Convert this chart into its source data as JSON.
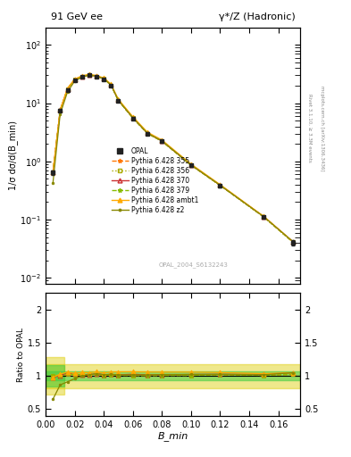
{
  "title_left": "91 GeV ee",
  "title_right": "γ*/Z (Hadronic)",
  "ylabel_main": "1/σ dσ/d(B_min)",
  "ylabel_ratio": "Ratio to OPAL",
  "xlabel": "B_min",
  "watermark": "OPAL_2004_S6132243",
  "right_label_top": "Rivet 3.1.10, ≥ 3.3M events",
  "right_label_bot": "mcplots.cern.ch [arXiv:1306.3436]",
  "x_data": [
    0.005,
    0.01,
    0.015,
    0.02,
    0.025,
    0.03,
    0.035,
    0.04,
    0.045,
    0.05,
    0.06,
    0.07,
    0.08,
    0.1,
    0.12,
    0.15,
    0.17
  ],
  "opal_y": [
    0.65,
    7.5,
    17.0,
    25.0,
    28.0,
    30.0,
    28.0,
    26.0,
    20.0,
    11.0,
    5.5,
    3.0,
    2.2,
    0.85,
    0.38,
    0.11,
    0.04
  ],
  "opal_yerr": [
    0.06,
    0.4,
    0.7,
    0.9,
    0.9,
    0.9,
    0.9,
    0.9,
    0.7,
    0.45,
    0.25,
    0.13,
    0.09,
    0.04,
    0.022,
    0.007,
    0.004
  ],
  "py355_y": [
    0.64,
    7.5,
    17.5,
    25.5,
    28.5,
    30.5,
    28.8,
    26.3,
    20.3,
    11.1,
    5.55,
    3.02,
    2.22,
    0.86,
    0.387,
    0.111,
    0.041
  ],
  "py356_y": [
    0.64,
    7.5,
    17.5,
    25.5,
    28.5,
    30.5,
    28.8,
    26.3,
    20.3,
    11.1,
    5.55,
    3.02,
    2.22,
    0.86,
    0.387,
    0.111,
    0.041
  ],
  "py370_y": [
    0.64,
    7.6,
    17.6,
    25.6,
    28.6,
    30.6,
    29.0,
    26.5,
    20.5,
    11.2,
    5.65,
    3.05,
    2.24,
    0.87,
    0.39,
    0.113,
    0.042
  ],
  "py379_y": [
    0.64,
    7.5,
    17.5,
    25.5,
    28.5,
    30.5,
    28.8,
    26.3,
    20.3,
    11.1,
    5.55,
    3.02,
    2.22,
    0.86,
    0.387,
    0.111,
    0.041
  ],
  "pyambt1_y": [
    0.64,
    7.7,
    18.0,
    26.0,
    29.5,
    31.5,
    29.8,
    27.2,
    21.2,
    11.7,
    5.85,
    3.18,
    2.33,
    0.9,
    0.4,
    0.114,
    0.042
  ],
  "pyz2_y": [
    0.42,
    6.5,
    15.5,
    24.0,
    28.0,
    30.5,
    29.0,
    26.5,
    20.5,
    11.2,
    5.6,
    3.05,
    2.25,
    0.87,
    0.39,
    0.112,
    0.042
  ],
  "ratio_355": [
    1.0,
    1.0,
    1.03,
    1.02,
    1.02,
    1.02,
    1.03,
    1.01,
    1.015,
    1.01,
    1.01,
    1.007,
    1.01,
    1.01,
    1.02,
    1.01,
    1.025
  ],
  "ratio_356": [
    1.0,
    1.0,
    1.03,
    1.02,
    1.02,
    1.02,
    1.03,
    1.01,
    1.015,
    1.01,
    1.01,
    1.007,
    1.01,
    1.01,
    1.02,
    1.01,
    1.025
  ],
  "ratio_370": [
    0.98,
    1.01,
    1.04,
    1.024,
    1.021,
    1.02,
    1.035,
    1.02,
    1.025,
    1.018,
    1.027,
    1.017,
    1.018,
    1.024,
    1.026,
    1.027,
    1.05
  ],
  "ratio_379": [
    1.0,
    1.0,
    1.03,
    1.02,
    1.02,
    1.02,
    1.03,
    1.01,
    1.015,
    1.01,
    1.01,
    1.007,
    1.01,
    1.01,
    1.02,
    1.01,
    1.025
  ],
  "ratio_ambt1": [
    0.98,
    1.03,
    1.06,
    1.04,
    1.054,
    1.05,
    1.064,
    1.046,
    1.06,
    1.063,
    1.064,
    1.06,
    1.059,
    1.059,
    1.053,
    1.036,
    1.05
  ],
  "ratio_z2": [
    0.65,
    0.867,
    0.912,
    0.96,
    1.0,
    1.017,
    1.036,
    1.019,
    1.025,
    1.018,
    1.018,
    1.017,
    1.023,
    1.024,
    1.026,
    1.018,
    1.05
  ],
  "lines": [
    {
      "ykey": "py355_y",
      "rkey": "ratio_355",
      "color": "#ff7700",
      "ls": "--",
      "marker": "*",
      "mfc": "#ff7700",
      "label": "Pythia 6.428 355"
    },
    {
      "ykey": "py356_y",
      "rkey": "ratio_356",
      "color": "#aaaa00",
      "ls": ":",
      "marker": "s",
      "mfc": "none",
      "label": "Pythia 6.428 356"
    },
    {
      "ykey": "py370_y",
      "rkey": "ratio_370",
      "color": "#cc3333",
      "ls": "-",
      "marker": "^",
      "mfc": "none",
      "label": "Pythia 6.428 370"
    },
    {
      "ykey": "py379_y",
      "rkey": "ratio_379",
      "color": "#88bb00",
      "ls": "--",
      "marker": "*",
      "mfc": "#88bb00",
      "label": "Pythia 6.428 379"
    },
    {
      "ykey": "pyambt1_y",
      "rkey": "ratio_ambt1",
      "color": "#ffaa00",
      "ls": "-",
      "marker": "^",
      "mfc": "#ffaa00",
      "label": "Pythia 6.428 ambt1"
    },
    {
      "ykey": "pyz2_y",
      "rkey": "ratio_z2",
      "color": "#888800",
      "ls": "-",
      "marker": ".",
      "mfc": "#888800",
      "label": "Pythia 6.428 z2"
    }
  ],
  "opal_color": "#222222",
  "band_yellow_lo": 0.82,
  "band_yellow_hi": 1.18,
  "band_green_lo": 0.93,
  "band_green_hi": 1.07,
  "band_yellow_color": "#ddcc00",
  "band_green_color": "#44cc44",
  "xlim": [
    0.0,
    0.175
  ],
  "ylim_main": [
    0.008,
    200
  ],
  "ylim_ratio": [
    0.4,
    2.25
  ],
  "ratio_yticks": [
    0.5,
    1.0,
    1.5,
    2.0
  ],
  "ratio_yticklabels": [
    "0.5",
    "1",
    "1.5",
    "2"
  ]
}
